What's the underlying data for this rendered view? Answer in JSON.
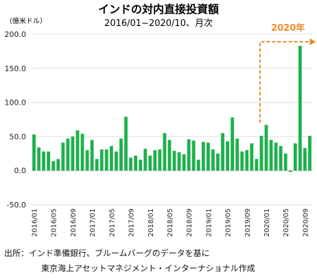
{
  "chart_data": {
    "type": "bar",
    "title": "インドの対内直接投資額",
    "subtitle": "2016/01~2020/10、月次",
    "unit_label": "（億米ドル）",
    "ylim": [
      -50,
      200
    ],
    "yticks": [
      -50,
      0,
      50,
      100,
      150,
      200
    ],
    "ytick_labels": [
      "-50.0",
      "0.0",
      "50.0",
      "100.0",
      "150.0",
      "200.0"
    ],
    "grid": true,
    "start": "2016/01",
    "x_tick_labels": [
      "2016/01",
      "2016/05",
      "2016/09",
      "2017/01",
      "2017/05",
      "2017/09",
      "2018/01",
      "2018/05",
      "2018/09",
      "2019/01",
      "2019/05",
      "2019/09",
      "2020/01",
      "2020/05",
      "2020/09"
    ],
    "categories": [
      "2016/01",
      "2016/02",
      "2016/03",
      "2016/04",
      "2016/05",
      "2016/06",
      "2016/07",
      "2016/08",
      "2016/09",
      "2016/10",
      "2016/11",
      "2016/12",
      "2017/01",
      "2017/02",
      "2017/03",
      "2017/04",
      "2017/05",
      "2017/06",
      "2017/07",
      "2017/08",
      "2017/09",
      "2017/10",
      "2017/11",
      "2017/12",
      "2018/01",
      "2018/02",
      "2018/03",
      "2018/04",
      "2018/05",
      "2018/06",
      "2018/07",
      "2018/08",
      "2018/09",
      "2018/10",
      "2018/11",
      "2018/12",
      "2019/01",
      "2019/02",
      "2019/03",
      "2019/04",
      "2019/05",
      "2019/06",
      "2019/07",
      "2019/08",
      "2019/09",
      "2019/10",
      "2019/11",
      "2019/12",
      "2020/01",
      "2020/02",
      "2020/03",
      "2020/04",
      "2020/05",
      "2020/06",
      "2020/07",
      "2020/08",
      "2020/09",
      "2020/10"
    ],
    "values": [
      53,
      34,
      28,
      28,
      14,
      17,
      41,
      47,
      50,
      59,
      54,
      30,
      45,
      17,
      31,
      31,
      36,
      28,
      47,
      79,
      19,
      22,
      16,
      32,
      22,
      30,
      31,
      55,
      45,
      29,
      27,
      24,
      46,
      44,
      16,
      42,
      41,
      31,
      25,
      55,
      43,
      78,
      47,
      28,
      30,
      40,
      17,
      51,
      67,
      45,
      41,
      36,
      25,
      -2,
      40,
      183,
      33,
      51
    ],
    "bar_color": "#1db14b",
    "annotation": {
      "text": "2020年",
      "color": "#f08a24",
      "from": "2019/12",
      "to": "2020/09"
    }
  },
  "source": {
    "line1": "出所：インド準備銀行、ブルームバーグのデータを基に",
    "line2": "東京海上アセットマネジメント・インターナショナル作成"
  }
}
